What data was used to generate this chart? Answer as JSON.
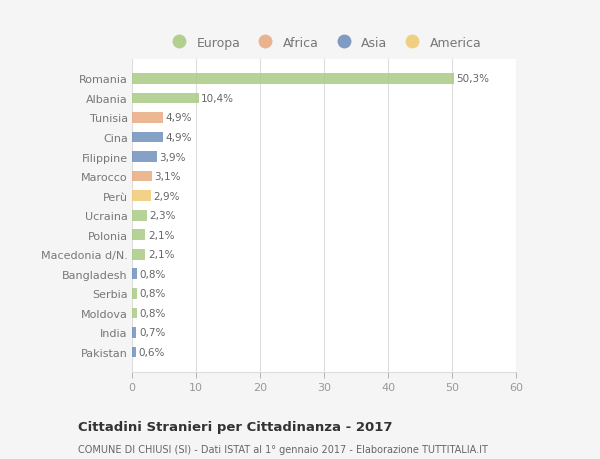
{
  "categories": [
    "Romania",
    "Albania",
    "Tunisia",
    "Cina",
    "Filippine",
    "Marocco",
    "Perù",
    "Ucraina",
    "Polonia",
    "Macedonia d/N.",
    "Bangladesh",
    "Serbia",
    "Moldova",
    "India",
    "Pakistan"
  ],
  "values": [
    50.3,
    10.4,
    4.9,
    4.9,
    3.9,
    3.1,
    2.9,
    2.3,
    2.1,
    2.1,
    0.8,
    0.8,
    0.8,
    0.7,
    0.6
  ],
  "labels": [
    "50,3%",
    "10,4%",
    "4,9%",
    "4,9%",
    "3,9%",
    "3,1%",
    "2,9%",
    "2,3%",
    "2,1%",
    "2,1%",
    "0,8%",
    "0,8%",
    "0,8%",
    "0,7%",
    "0,6%"
  ],
  "colors": [
    "#a8c97f",
    "#a8c97f",
    "#e8a87c",
    "#6b8cba",
    "#6b8cba",
    "#e8a87c",
    "#f0c96e",
    "#a8c97f",
    "#a8c97f",
    "#a8c97f",
    "#6b8cba",
    "#a8c97f",
    "#a8c97f",
    "#6b8cba",
    "#6b8cba"
  ],
  "legend_labels": [
    "Europa",
    "Africa",
    "Asia",
    "America"
  ],
  "legend_colors": [
    "#a8c97f",
    "#e8a87c",
    "#6b8cba",
    "#f0c96e"
  ],
  "xlim": [
    0,
    60
  ],
  "xticks": [
    0,
    10,
    20,
    30,
    40,
    50,
    60
  ],
  "title": "Cittadini Stranieri per Cittadinanza - 2017",
  "subtitle": "COMUNE DI CHIUSI (SI) - Dati ISTAT al 1° gennaio 2017 - Elaborazione TUTTITALIA.IT",
  "bg_color": "#f5f5f5",
  "bar_bg_color": "#ffffff",
  "grid_color": "#dddddd",
  "label_color": "#666666",
  "ytick_color": "#777777",
  "xtick_color": "#999999"
}
